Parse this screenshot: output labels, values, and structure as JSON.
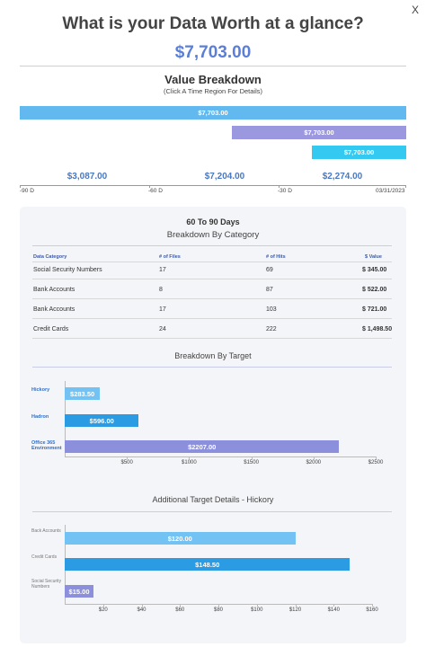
{
  "close_label": "X",
  "title": "What is your Data Worth at a glance?",
  "total": "$7,703.00",
  "value_breakdown": {
    "title": "Value Breakdown",
    "subtitle": "(Click A Time Region For Details)",
    "bars": [
      {
        "label": "$7,703.00",
        "color": "#62b9ef"
      },
      {
        "label": "$7,703.00",
        "color": "#9b98e0"
      },
      {
        "label": "$7,703.00",
        "color": "#33c9f0"
      }
    ],
    "region_values": [
      "$3,087.00",
      "$7,204.00",
      "$2,274.00"
    ],
    "axis_labels": [
      "-90 D",
      "-60 D",
      "-30 D",
      "03/31/2023"
    ]
  },
  "details": {
    "title": "60 To 90 Days",
    "category_title": "Breakdown By Category",
    "columns": [
      "Data Category",
      "# of Files",
      "# of Hits",
      "$ Value"
    ],
    "rows": [
      {
        "category": "Social Security Numbers",
        "files": "17",
        "hits": "69",
        "value": "$ 345.00"
      },
      {
        "category": "Bank Accounts",
        "files": "8",
        "hits": "87",
        "value": "$ 522.00"
      },
      {
        "category": "Bank Accounts",
        "files": "17",
        "hits": "103",
        "value": "$ 721.00"
      },
      {
        "category": "Credit Cards",
        "files": "24",
        "hits": "222",
        "value": "$ 1,498.50"
      }
    ],
    "target_title": "Breakdown By Target",
    "additional_title": "Additional Target Details - Hickory"
  },
  "chart_data": [
    {
      "type": "bar",
      "orientation": "horizontal",
      "title": "Breakdown By Target",
      "categories": [
        "Hickory",
        "Hadron",
        "Office 365 Environment"
      ],
      "values": [
        283.5,
        596.0,
        2207.0
      ],
      "value_labels": [
        "$283.50",
        "$596.00",
        "$2207.00"
      ],
      "colors": [
        "#72c2f3",
        "#2b9be3",
        "#8c8fdc"
      ],
      "xlim": [
        0,
        2500
      ],
      "xticks": [
        "$500",
        "$1000",
        "$1500",
        "$2000",
        "$2500"
      ]
    },
    {
      "type": "bar",
      "orientation": "horizontal",
      "title": "Additional Target Details - Hickory",
      "categories": [
        "Back Accounts",
        "Credit Cards",
        "Social Security Numbers"
      ],
      "values": [
        120.0,
        148.5,
        15.0
      ],
      "value_labels": [
        "$120.00",
        "$148.50",
        "$15.00"
      ],
      "colors": [
        "#72c2f3",
        "#2b9be3",
        "#8c8fdc"
      ],
      "xlim": [
        0,
        160
      ],
      "xticks": [
        "$20",
        "$40",
        "$60",
        "$80",
        "$100",
        "$120",
        "$140",
        "$160"
      ]
    }
  ]
}
